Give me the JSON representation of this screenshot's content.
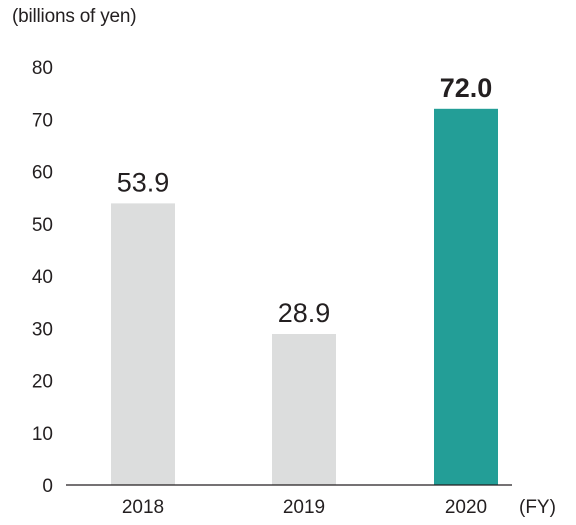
{
  "chart_data": {
    "type": "bar",
    "unit_label": "(billions of yen)",
    "x_unit": "(FY)",
    "categories": [
      "2018",
      "2019",
      "2020"
    ],
    "values": [
      53.9,
      28.9,
      72.0
    ],
    "value_labels": [
      "53.9",
      "28.9",
      "72.0"
    ],
    "highlight_index": 2,
    "colors": [
      "#dcdddd",
      "#dcdddd",
      "#239e97"
    ],
    "ylim": [
      0,
      80
    ],
    "yticks": [
      0,
      10,
      20,
      30,
      40,
      50,
      60,
      70,
      80
    ],
    "grid": false,
    "legend": "none"
  }
}
